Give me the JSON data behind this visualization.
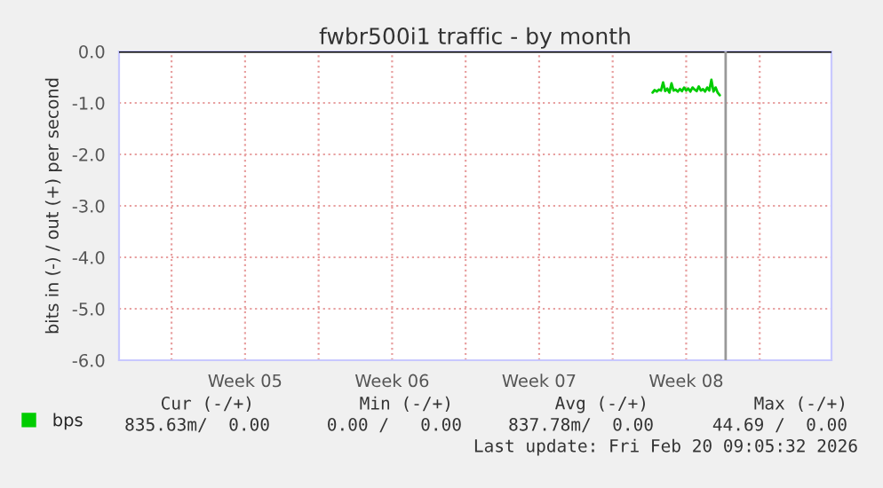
{
  "chart_data": {
    "type": "line",
    "title": "fwbr500i1 traffic - by month",
    "ylabel": "bits in (-) / out (+) per second",
    "xlim": [
      "2026-01-22T12:00",
      "2026-02-25T10:00"
    ],
    "ylim": [
      -6,
      0
    ],
    "yticks": [
      {
        "value": -6,
        "label": "-6.0"
      },
      {
        "value": -5,
        "label": "-5.0"
      },
      {
        "value": -4,
        "label": "-4.0"
      },
      {
        "value": -3,
        "label": "-3.0"
      },
      {
        "value": -2,
        "label": "-2.0"
      },
      {
        "value": -1,
        "label": "-1.0"
      },
      {
        "value": 0,
        "label": "0.0"
      }
    ],
    "xticks": [
      {
        "value": "2026-01-25",
        "label": null
      },
      {
        "value": "2026-01-28T12:00",
        "label": "Week 05"
      },
      {
        "value": "2026-02-01",
        "label": null
      },
      {
        "value": "2026-02-04T12:00",
        "label": "Week 06"
      },
      {
        "value": "2026-02-08",
        "label": null
      },
      {
        "value": "2026-02-11T12:00",
        "label": "Week 07"
      },
      {
        "value": "2026-02-15",
        "label": null
      },
      {
        "value": "2026-02-18T12:00",
        "label": "Week 08"
      },
      {
        "value": "2026-02-22",
        "label": null
      }
    ],
    "grid": true,
    "legend": "bottom left",
    "series": [
      {
        "name": "bps",
        "color": "#00cc00",
        "x": [
          "2026-02-16T21:36",
          "2026-02-17T00:00",
          "2026-02-17T02:24",
          "2026-02-17T04:48",
          "2026-02-17T07:12",
          "2026-02-17T09:36",
          "2026-02-17T12:00",
          "2026-02-17T14:24",
          "2026-02-17T16:48",
          "2026-02-17T19:12",
          "2026-02-17T21:36",
          "2026-02-18T00:00",
          "2026-02-18T02:24",
          "2026-02-18T04:48",
          "2026-02-18T07:12",
          "2026-02-18T09:36",
          "2026-02-18T12:00",
          "2026-02-18T14:24",
          "2026-02-18T16:48",
          "2026-02-18T19:12",
          "2026-02-18T21:36",
          "2026-02-19T00:00",
          "2026-02-19T02:24",
          "2026-02-19T04:48",
          "2026-02-19T07:12",
          "2026-02-19T09:36",
          "2026-02-19T12:00",
          "2026-02-19T14:24",
          "2026-02-19T16:48",
          "2026-02-19T19:12",
          "2026-02-19T21:36",
          "2026-02-20T00:00",
          "2026-02-20T02:24"
        ],
        "values": [
          -0.8,
          -0.75,
          -0.78,
          -0.74,
          -0.76,
          -0.6,
          -0.77,
          -0.72,
          -0.8,
          -0.62,
          -0.76,
          -0.74,
          -0.78,
          -0.73,
          -0.77,
          -0.7,
          -0.76,
          -0.72,
          -0.78,
          -0.7,
          -0.74,
          -0.77,
          -0.68,
          -0.76,
          -0.73,
          -0.78,
          -0.7,
          -0.76,
          -0.55,
          -0.78,
          -0.7,
          -0.8,
          -0.85
        ]
      }
    ],
    "ref_lines": [
      {
        "axis": "y",
        "value": 0,
        "color": "#000000"
      },
      {
        "axis": "x",
        "value": "2026-02-20T09:05",
        "color": "#999999"
      }
    ],
    "annotations": [
      "Cur (-/+)",
      "Min (-/+)",
      "Avg (-/+)",
      "Max (-/+)",
      "835.63m/  0.00",
      "0.00 /   0.00",
      "837.78m/  0.00",
      "44.69 /  0.00",
      "Last update: Fri Feb 20 09:05:32 2026"
    ]
  }
}
